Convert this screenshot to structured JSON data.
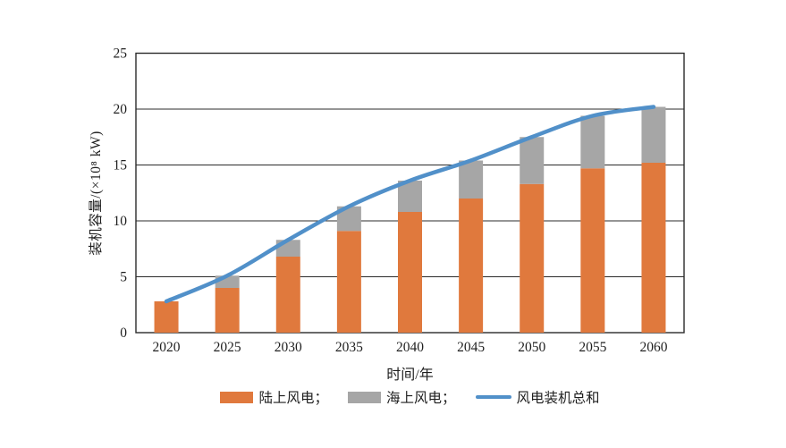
{
  "chart_data": {
    "type": "bar",
    "title": "",
    "categories": [
      "2020",
      "2025",
      "2030",
      "2035",
      "2040",
      "2045",
      "2050",
      "2055",
      "2060"
    ],
    "series": [
      {
        "name": "陆上风电",
        "key": "onshore",
        "type": "bar",
        "stack": "wind",
        "color": "#E0793D",
        "values": [
          2.8,
          4.0,
          6.8,
          9.1,
          10.8,
          12.0,
          13.3,
          14.7,
          15.2
        ]
      },
      {
        "name": "海上风电",
        "key": "offshore",
        "type": "bar",
        "stack": "wind",
        "color": "#A6A6A6",
        "values": [
          0,
          1.1,
          1.5,
          2.2,
          2.8,
          3.4,
          4.2,
          4.7,
          5.0
        ]
      },
      {
        "name": "风电装机总和",
        "key": "total",
        "type": "line",
        "color": "#5190C9",
        "values": [
          2.8,
          5.1,
          8.3,
          11.3,
          13.6,
          15.4,
          17.5,
          19.4,
          20.2
        ]
      }
    ],
    "xlabel": "时间/年",
    "ylabel": "装机容量/(×10⁸ kW)",
    "ylim": [
      0,
      25
    ],
    "ytick_step": 5,
    "grid": "horizontal",
    "legend_position": "bottom",
    "axis_color": "#2b2b2b"
  },
  "legend": {
    "items": [
      {
        "label": "陆上风电；"
      },
      {
        "label": "海上风电；"
      },
      {
        "label": "风电装机总和"
      }
    ]
  }
}
